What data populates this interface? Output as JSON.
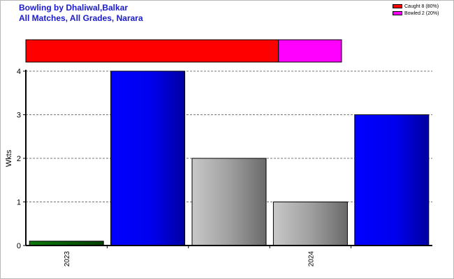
{
  "chart_data": {
    "type": "bar",
    "title": "Bowling by Dhaliwal,Balkar",
    "subtitle": "All Matches, All Grades, Narara",
    "ylabel": "Wkts",
    "xlabel": "",
    "ylim": [
      0,
      4
    ],
    "yticks": [
      "0",
      "1",
      "2",
      "3",
      "4"
    ],
    "grid": true,
    "x_tick_labels": [
      {
        "label": "2023",
        "after_bar": 0
      },
      {
        "label": "2024",
        "after_bar": 3
      }
    ],
    "bars": [
      {
        "value": 0.1,
        "color": "#0a6a0a"
      },
      {
        "value": 4,
        "color": "#0000ff"
      },
      {
        "value": 2,
        "color": "#a8a8a8"
      },
      {
        "value": 1,
        "color": "#a8a8a8"
      },
      {
        "value": 3,
        "color": "#0000ff"
      }
    ],
    "dismissals": [
      {
        "name": "Caught 8 (80%)",
        "fraction": 0.8,
        "color": "#ff0000"
      },
      {
        "name": "Bowled 2 (20%)",
        "fraction": 0.2,
        "color": "#ff00ff"
      }
    ]
  }
}
